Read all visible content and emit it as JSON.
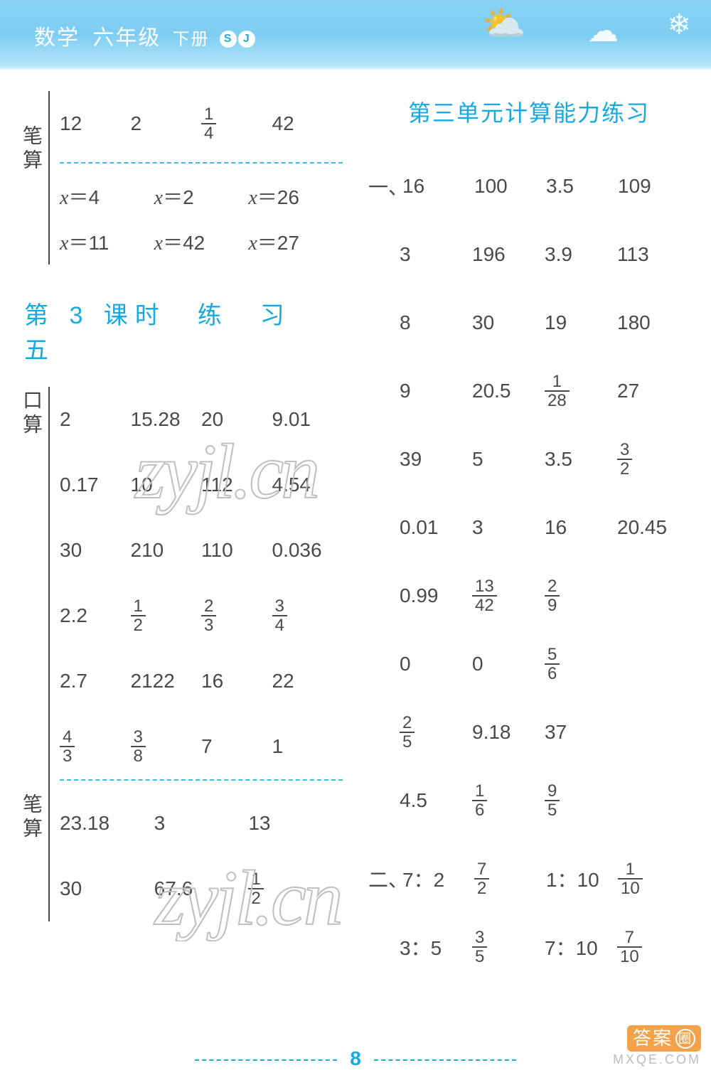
{
  "banner": {
    "subject": "数学",
    "grade": "六年级",
    "volume": "下册",
    "badge1": "S",
    "badge2": "J"
  },
  "page_number": "8",
  "left": {
    "bisuan_label": "笔算",
    "kousuan_label": "口算",
    "top": {
      "row1": [
        "12",
        "2",
        {
          "frac": [
            "1",
            "4"
          ]
        },
        "42"
      ],
      "eq_rows": [
        [
          "x＝4",
          "x＝2",
          "x＝26"
        ],
        [
          "x＝11",
          "x＝42",
          "x＝27"
        ]
      ]
    },
    "section_title": "第 3 课时　练　习　五",
    "kousuan_rows": [
      [
        "2",
        "15.28",
        "20",
        "9.01"
      ],
      [
        "0.17",
        "10",
        "112",
        "4.54"
      ],
      [
        "30",
        "210",
        "110",
        "0.036"
      ],
      [
        "2.2",
        {
          "frac": [
            "1",
            "2"
          ]
        },
        {
          "frac": [
            "2",
            "3"
          ]
        },
        {
          "frac": [
            "3",
            "4"
          ]
        }
      ],
      [
        "2.7",
        "2122",
        "16",
        "22"
      ],
      [
        {
          "frac": [
            "4",
            "3"
          ]
        },
        {
          "frac": [
            "3",
            "8"
          ]
        },
        "7",
        "1"
      ]
    ],
    "bisuan2_rows": [
      [
        "23.18",
        "3",
        "13"
      ],
      [
        "30",
        "67.6",
        {
          "frac": [
            "1",
            "2"
          ]
        }
      ]
    ]
  },
  "right": {
    "unit_title": "第三单元计算能力练习",
    "lead": "一、",
    "lead2": "二、",
    "part1_rows": [
      [
        "16",
        "100",
        "3.5",
        "109"
      ],
      [
        "3",
        "196",
        "3.9",
        "113"
      ],
      [
        "8",
        "30",
        "19",
        "180"
      ],
      [
        "9",
        "20.5",
        {
          "frac": [
            "1",
            "28"
          ]
        },
        "27"
      ],
      [
        "39",
        "5",
        "3.5",
        {
          "frac": [
            "3",
            "2"
          ]
        }
      ],
      [
        "0.01",
        "3",
        "16",
        "20.45"
      ],
      [
        "0.99",
        {
          "frac": [
            "13",
            "42"
          ]
        },
        {
          "frac": [
            "2",
            "9"
          ]
        },
        ""
      ],
      [
        "0",
        "0",
        {
          "frac": [
            "5",
            "6"
          ]
        },
        ""
      ],
      [
        {
          "frac": [
            "2",
            "5"
          ]
        },
        "9.18",
        "37",
        ""
      ],
      [
        "4.5",
        {
          "frac": [
            "1",
            "6"
          ]
        },
        {
          "frac": [
            "9",
            "5"
          ]
        },
        ""
      ]
    ],
    "part2_rows": [
      [
        "7：2",
        {
          "frac": [
            "7",
            "2"
          ]
        },
        "1：10",
        {
          "frac": [
            "1",
            "10"
          ]
        }
      ],
      [
        "3：5",
        {
          "frac": [
            "3",
            "5"
          ]
        },
        "7：10",
        {
          "frac": [
            "7",
            "10"
          ]
        }
      ]
    ]
  },
  "watermarks": {
    "wm1": "zyjl.cn",
    "wm2": "zyjl.cn",
    "stamp_main": "答案",
    "stamp_circle": "圈",
    "stamp_sub": "MXQE.COM"
  }
}
